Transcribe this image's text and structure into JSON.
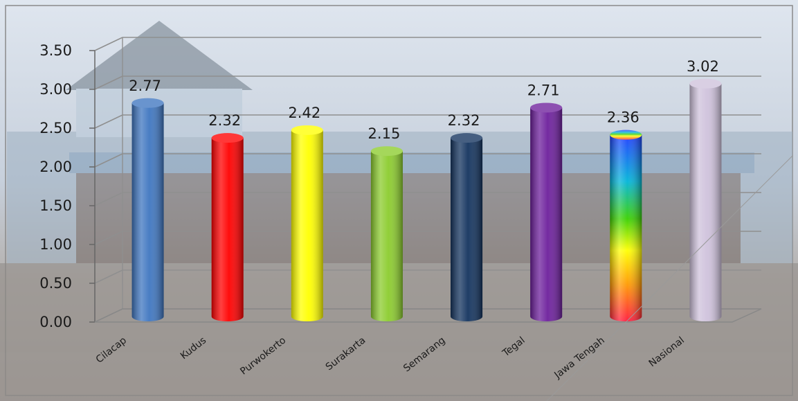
{
  "chart_data": {
    "type": "bar",
    "title": "",
    "xlabel": "",
    "ylabel": "",
    "categories": [
      "Cilacap",
      "Kudus",
      "Purwokerto",
      "Surakarta",
      "Semarang",
      "Tegal",
      "Jawa Tengah",
      "Nasional"
    ],
    "values": [
      2.77,
      2.32,
      2.42,
      2.15,
      2.32,
      2.71,
      2.36,
      3.02
    ],
    "value_labels": [
      "2.77",
      "2.32",
      "2.42",
      "2.15",
      "2.32",
      "2.71",
      "2.36",
      ""
    ],
    "top_label": "3.02",
    "ylim": [
      0,
      3.5
    ],
    "yticks": [
      "0.00",
      "0.50",
      "1.00",
      "1.50",
      "2.00",
      "2.50",
      "3.00",
      "3.50"
    ],
    "grid": true,
    "legend": "none",
    "colors": [
      "#3f76c0",
      "#ff0000",
      "#ffff00",
      "#8ccc2e",
      "#13335e",
      "#6d1f9c",
      "rainbow",
      "#cfc2dc"
    ]
  }
}
